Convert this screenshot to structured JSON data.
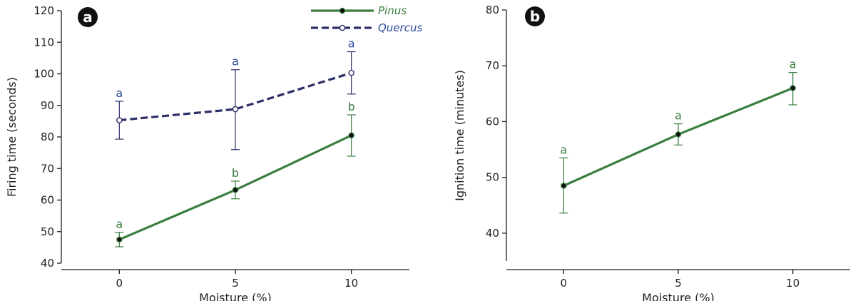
{
  "colors": {
    "pinus": "#3a7d3f",
    "quercus": "#2b2f66",
    "quercus_letters": "#2a4a9a",
    "axis": "#231f20",
    "badge": "#111111"
  },
  "chart_data": [
    {
      "panel": "a",
      "type": "line",
      "xlabel": "Moisture (%)",
      "ylabel": "Firing time (seconds)",
      "x_ticks": [
        "0",
        "5",
        "10"
      ],
      "y_ticks": [
        "40",
        "50",
        "60",
        "70",
        "80",
        "90",
        "100",
        "110",
        "120"
      ],
      "xlim": [
        -2.5,
        12.5
      ],
      "ylim": [
        40,
        120
      ],
      "grid": false,
      "legend_position": "top-center",
      "series": [
        {
          "name": "Pinus",
          "line_style": "solid",
          "marker": "filled-circle",
          "color": "#3a7d3f",
          "x": [
            0,
            5,
            10
          ],
          "y": [
            47.5,
            63.2,
            80.5
          ],
          "err_low": [
            45.2,
            60.4,
            73.9
          ],
          "err_high": [
            49.8,
            66.0,
            87.0
          ],
          "labels": [
            "a",
            "b",
            "b"
          ]
        },
        {
          "name": "Quercus",
          "line_style": "dashed",
          "marker": "open-circle",
          "color": "#2b2f66",
          "x": [
            0,
            5,
            10
          ],
          "y": [
            85.3,
            88.8,
            100.3
          ],
          "err_low": [
            79.3,
            76.0,
            93.6
          ],
          "err_high": [
            91.3,
            101.3,
            107.0
          ],
          "labels": [
            "a",
            "a",
            "a"
          ]
        }
      ]
    },
    {
      "panel": "b",
      "type": "line",
      "xlabel": "Moisture (%)",
      "ylabel": "Ignition time (minutes)",
      "x_ticks": [
        "0",
        "5",
        "10"
      ],
      "y_ticks": [
        "40",
        "50",
        "60",
        "70",
        "80"
      ],
      "xlim": [
        -2.5,
        12.5
      ],
      "ylim": [
        35,
        80
      ],
      "grid": false,
      "series": [
        {
          "name": "",
          "line_style": "solid",
          "marker": "filled-circle",
          "color": "#3a7d3f",
          "x": [
            0,
            5,
            10
          ],
          "y": [
            48.5,
            57.7,
            66.0
          ],
          "err_low": [
            43.6,
            55.8,
            63.0
          ],
          "err_high": [
            53.5,
            59.6,
            68.8
          ],
          "labels": [
            "a",
            "a",
            "a"
          ]
        }
      ]
    }
  ]
}
